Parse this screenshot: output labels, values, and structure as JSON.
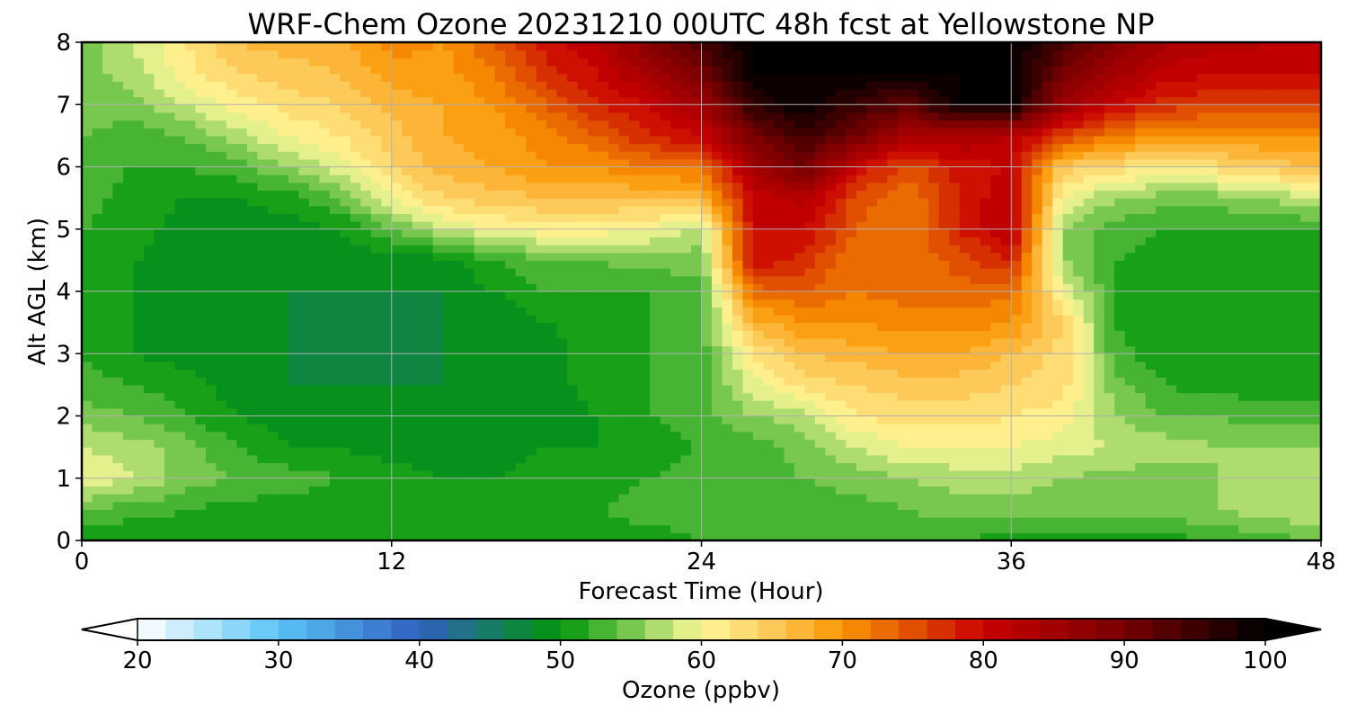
{
  "chart_data": {
    "type": "heatmap",
    "title": "WRF-Chem Ozone  20231210 00UTC 48h fcst at Yellowstone NP",
    "xlabel": "Forecast Time (Hour)",
    "ylabel": "Alt AGL (km)",
    "xlim": [
      0,
      48
    ],
    "ylim": [
      0,
      8
    ],
    "x_ticks": [
      0,
      12,
      24,
      36,
      48
    ],
    "y_ticks": [
      0,
      1,
      2,
      3,
      4,
      5,
      6,
      7,
      8
    ],
    "grid": true,
    "colorbar": {
      "label": "Ozone  (ppbv)",
      "min": 20,
      "max": 100,
      "ticks": [
        20,
        30,
        40,
        50,
        60,
        70,
        80,
        90,
        100
      ],
      "extend": "both",
      "stops": [
        {
          "v": 20,
          "color": "#ffffff"
        },
        {
          "v": 30,
          "color": "#5ac4f6"
        },
        {
          "v": 40,
          "color": "#3060c0"
        },
        {
          "v": 50,
          "color": "#00960a"
        },
        {
          "v": 55,
          "color": "#78c850"
        },
        {
          "v": 60,
          "color": "#fffa9a"
        },
        {
          "v": 65,
          "color": "#fdca5a"
        },
        {
          "v": 70,
          "color": "#fa9600"
        },
        {
          "v": 75,
          "color": "#e05000"
        },
        {
          "v": 80,
          "color": "#c80000"
        },
        {
          "v": 90,
          "color": "#780000"
        },
        {
          "v": 100,
          "color": "#000000"
        }
      ]
    },
    "grid_x": [
      0,
      2,
      4,
      6,
      8,
      10,
      12,
      14,
      16,
      18,
      20,
      22,
      24,
      26,
      28,
      30,
      32,
      34,
      36,
      38,
      40,
      42,
      44,
      46,
      48
    ],
    "grid_y": [
      0,
      0.5,
      1,
      1.5,
      2,
      2.5,
      3,
      3.5,
      4,
      4.5,
      5,
      5.5,
      6,
      6.5,
      7,
      7.5,
      8
    ],
    "values": [
      [
        50,
        50,
        50,
        50,
        50,
        50,
        50,
        50,
        50,
        51,
        51,
        51,
        52,
        52,
        52,
        52,
        52,
        52,
        51,
        51,
        51,
        51,
        52,
        53,
        54
      ],
      [
        54,
        53,
        52,
        51,
        51,
        51,
        51,
        51,
        51,
        52,
        52,
        53,
        53,
        52,
        53,
        53,
        54,
        55,
        55,
        55,
        55,
        55,
        56,
        57,
        58
      ],
      [
        60,
        58,
        55,
        54,
        53,
        52,
        51,
        50,
        50,
        51,
        51,
        52,
        53,
        53,
        54,
        55,
        56,
        57,
        57,
        56,
        55,
        55,
        56,
        57,
        58
      ],
      [
        58,
        57,
        55,
        52,
        50,
        50,
        49,
        49,
        49,
        50,
        50,
        51,
        52,
        53,
        55,
        58,
        60,
        60,
        60,
        59,
        58,
        57,
        56,
        56,
        56
      ],
      [
        55,
        54,
        52,
        50,
        49,
        49,
        49,
        49,
        49,
        49,
        50,
        52,
        53,
        56,
        57,
        62,
        63,
        63,
        62,
        61,
        56,
        54,
        54,
        53,
        53
      ],
      [
        53,
        52,
        51,
        49,
        48,
        48,
        48,
        48,
        49,
        49,
        51,
        52,
        53,
        59,
        63,
        64,
        65,
        65,
        64,
        63,
        55,
        52,
        51,
        51,
        51
      ],
      [
        52,
        50,
        49,
        48,
        48,
        47,
        47,
        48,
        48,
        49,
        51,
        52,
        53,
        62,
        66,
        67,
        68,
        68,
        66,
        63,
        53,
        50,
        50,
        50,
        50
      ],
      [
        52,
        50,
        48,
        48,
        48,
        47,
        47,
        48,
        48,
        50,
        51,
        52,
        53,
        67,
        70,
        70,
        71,
        71,
        70,
        64,
        52,
        50,
        50,
        50,
        50
      ],
      [
        52,
        50,
        48,
        48,
        48,
        48,
        48,
        48,
        50,
        52,
        52,
        52,
        53,
        73,
        74,
        72,
        73,
        73,
        73,
        60,
        52,
        50,
        50,
        50,
        50
      ],
      [
        52,
        50,
        49,
        48,
        48,
        48,
        49,
        49,
        52,
        54,
        54,
        55,
        55,
        80,
        77,
        72,
        72,
        75,
        78,
        56,
        52,
        51,
        51,
        51,
        51
      ],
      [
        52,
        51,
        49,
        49,
        49,
        50,
        54,
        58,
        60,
        61,
        61,
        60,
        57,
        80,
        80,
        74,
        72,
        78,
        82,
        56,
        53,
        52,
        52,
        52,
        52
      ],
      [
        53,
        51,
        50,
        50,
        51,
        54,
        60,
        64,
        65,
        66,
        66,
        66,
        67,
        80,
        83,
        75,
        72,
        78,
        82,
        60,
        56,
        55,
        55,
        56,
        58
      ],
      [
        53,
        52,
        52,
        53,
        56,
        59,
        64,
        67,
        68,
        70,
        70,
        72,
        72,
        85,
        90,
        80,
        75,
        79,
        80,
        65,
        63,
        62,
        63,
        65,
        66
      ],
      [
        54,
        53,
        54,
        57,
        60,
        62,
        65,
        68,
        69,
        71,
        74,
        78,
        80,
        90,
        95,
        90,
        84,
        84,
        82,
        76,
        72,
        70,
        70,
        70,
        70
      ],
      [
        55,
        55,
        58,
        61,
        63,
        64,
        67,
        68,
        70,
        74,
        78,
        80,
        85,
        96,
        100,
        95,
        92,
        100,
        100,
        86,
        80,
        77,
        76,
        76,
        76
      ],
      [
        55,
        57,
        61,
        64,
        65,
        66,
        69,
        69,
        72,
        77,
        80,
        85,
        90,
        100,
        100,
        100,
        100,
        100,
        100,
        90,
        85,
        81,
        80,
        80,
        80
      ],
      [
        55,
        58,
        62,
        66,
        67,
        67,
        71,
        70,
        74,
        79,
        82,
        88,
        94,
        100,
        100,
        100,
        100,
        100,
        100,
        94,
        88,
        84,
        83,
        82,
        82
      ]
    ]
  }
}
